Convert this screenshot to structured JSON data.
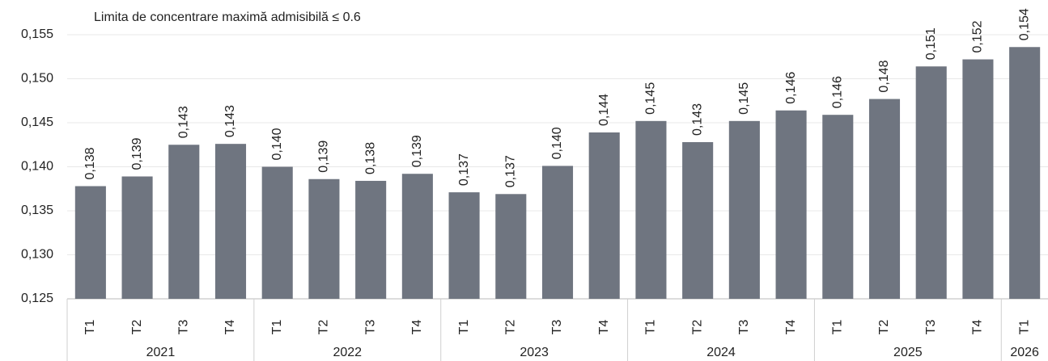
{
  "chart_data": {
    "type": "bar",
    "annotation": "Limita de concentrare maximă admisibilă ≤ 0.6",
    "groups": [
      {
        "name": "2021",
        "categories": [
          "T1",
          "T2",
          "T3",
          "T4"
        ]
      },
      {
        "name": "2022",
        "categories": [
          "T1",
          "T2",
          "T3",
          "T4"
        ]
      },
      {
        "name": "2023",
        "categories": [
          "T1",
          "T2",
          "T3",
          "T4"
        ]
      },
      {
        "name": "2024",
        "categories": [
          "T1",
          "T2",
          "T3",
          "T4"
        ]
      },
      {
        "name": "2025",
        "categories": [
          "T1",
          "T2",
          "T3",
          "T4"
        ]
      },
      {
        "name": "2026",
        "categories": [
          "T1"
        ]
      }
    ],
    "values": [
      0.1378,
      0.1389,
      0.1425,
      0.1426,
      0.14,
      0.1386,
      0.1384,
      0.1392,
      0.1371,
      0.1369,
      0.1401,
      0.1439,
      0.1452,
      0.1428,
      0.1452,
      0.1464,
      0.1459,
      0.1477,
      0.1514,
      0.1522,
      0.1536
    ],
    "value_labels": [
      "0,138",
      "0,139",
      "0,143",
      "0,143",
      "0,140",
      "0,139",
      "0,138",
      "0,139",
      "0,137",
      "0,137",
      "0,140",
      "0,144",
      "0,145",
      "0,143",
      "0,145",
      "0,146",
      "0,146",
      "0,148",
      "0,151",
      "0,152",
      "0,154"
    ],
    "color": "#6f7580",
    "ylim": [
      0.125,
      0.155
    ],
    "yticks": [
      {
        "value": 0.125,
        "label": "0,125"
      },
      {
        "value": 0.13,
        "label": "0,130"
      },
      {
        "value": 0.135,
        "label": "0,135"
      },
      {
        "value": 0.14,
        "label": "0,140"
      },
      {
        "value": 0.145,
        "label": "0,145"
      },
      {
        "value": 0.15,
        "label": "0,150"
      },
      {
        "value": 0.155,
        "label": "0,155"
      }
    ],
    "grid": true
  }
}
